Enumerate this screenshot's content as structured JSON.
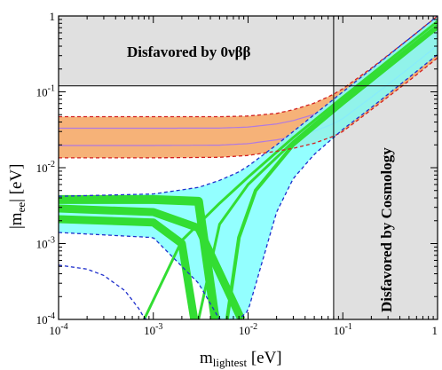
{
  "chart_data": {
    "type": "line",
    "xlabel_main": "m",
    "xlabel_sub": "lightest",
    "xlabel_unit": " [eV]",
    "ylabel_main": "|m",
    "ylabel_sub": "ee",
    "ylabel_unit": "| [eV]",
    "xscale": "log",
    "yscale": "log",
    "xlim": [
      0.0001,
      1
    ],
    "ylim": [
      0.0001,
      1
    ],
    "x_tick_labels": [
      {
        "base": "10",
        "exp": "-4"
      },
      {
        "base": "10",
        "exp": "-3"
      },
      {
        "base": "10",
        "exp": "-2"
      },
      {
        "base": "10",
        "exp": "-1"
      },
      {
        "base": "1",
        "exp": ""
      }
    ],
    "y_tick_labels": [
      {
        "base": "10",
        "exp": "-4"
      },
      {
        "base": "10",
        "exp": "-3"
      },
      {
        "base": "10",
        "exp": "-2"
      },
      {
        "base": "10",
        "exp": "-1"
      },
      {
        "base": "1",
        "exp": ""
      }
    ],
    "excluded_regions": [
      {
        "label": "Disfavored by 0νββ",
        "y_min": 0.12,
        "y_max": 1,
        "color": "#e0e0e0"
      },
      {
        "label": "Disfavored by Cosmology",
        "x_min": 0.08,
        "x_max": 1,
        "color": "#e0e0e0"
      }
    ],
    "bands": [
      {
        "ordering": "inverted",
        "fill": "#f4a460",
        "boundary_color": "#d22020",
        "x": [
          0.0001,
          0.001,
          0.005,
          0.01,
          0.02,
          0.03,
          0.05,
          0.08,
          0.1,
          0.2,
          0.5,
          1
        ],
        "upper": [
          0.047,
          0.047,
          0.047,
          0.048,
          0.052,
          0.058,
          0.071,
          0.093,
          0.11,
          0.205,
          0.5,
          1.0
        ],
        "lower": [
          0.0135,
          0.0135,
          0.0137,
          0.0145,
          0.0165,
          0.018,
          0.021,
          0.026,
          0.03,
          0.058,
          0.14,
          0.28
        ]
      },
      {
        "ordering": "normal",
        "fill": "#80ffff",
        "extreme_fill": "#33dd33",
        "boundary_color": "#1f2fcc",
        "x": [
          0.0001,
          0.001,
          0.003,
          0.005,
          0.008,
          0.01,
          0.02,
          0.03,
          0.05,
          0.08,
          0.1,
          0.2,
          0.5,
          1
        ],
        "upper": [
          0.0042,
          0.0045,
          0.0055,
          0.0068,
          0.0088,
          0.0105,
          0.02,
          0.03,
          0.05,
          0.08,
          0.1,
          0.2,
          0.5,
          1.0
        ],
        "lower": [
          0.0014,
          0.0012,
          0.0003,
          0.0001,
          0.0001,
          0.00013,
          0.0026,
          0.0072,
          0.015,
          0.025,
          0.032,
          0.062,
          0.155,
          0.31
        ]
      }
    ],
    "minimum_curve": {
      "style": "dashed",
      "color": "#1f2fcc",
      "x": [
        0.0001,
        0.0002,
        0.0003,
        0.0005,
        0.0007,
        0.0008,
        0.00085
      ],
      "y": [
        0.00052,
        0.00046,
        0.00038,
        0.00024,
        0.00014,
        0.000105,
        0.0001
      ]
    },
    "reference_lines": {
      "y": 0.12,
      "x": 0.08
    }
  }
}
